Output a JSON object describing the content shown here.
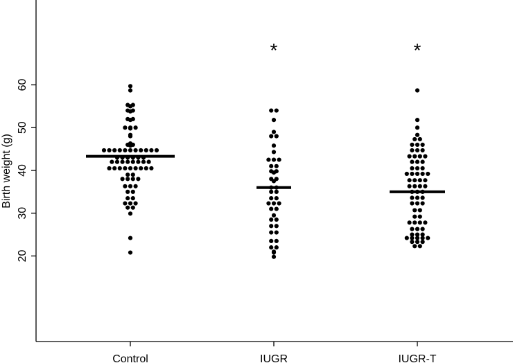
{
  "chart_data": {
    "type": "scatter",
    "subtype": "dot-strip (beeswarm) with group means",
    "ylabel": "Birth weight (g)",
    "xlabel": "",
    "ylim": [
      0,
      80
    ],
    "yticks": [
      20,
      30,
      40,
      50,
      60
    ],
    "grid": false,
    "legend": "none",
    "categories": [
      "Control",
      "IUGR",
      "IUGR-T"
    ],
    "means": [
      43.3,
      36.0,
      35.0
    ],
    "significance": [
      "",
      "*",
      "*"
    ],
    "series": [
      {
        "category": "Control",
        "values": [
          59.7,
          58.7,
          55.3,
          55.3,
          55.0,
          54.0,
          54.0,
          53.8,
          52.0,
          52.0,
          51.8,
          50.0,
          50.0,
          50.0,
          49.8,
          48.3,
          48.0,
          46.3,
          46.0,
          46.0,
          45.8,
          44.7,
          44.7,
          44.7,
          44.7,
          44.7,
          44.7,
          44.7,
          44.7,
          44.7,
          44.7,
          44.7,
          43.0,
          43.0,
          43.0,
          43.0,
          43.0,
          43.0,
          42.0,
          42.0,
          42.0,
          42.0,
          42.0,
          42.0,
          42.0,
          42.0,
          40.5,
          40.5,
          40.5,
          40.5,
          40.5,
          40.5,
          40.5,
          40.5,
          40.5,
          39.0,
          39.0,
          38.0,
          38.0,
          38.0,
          38.0,
          36.3,
          36.3,
          36.3,
          35.0,
          35.0,
          33.5,
          33.5,
          32.3,
          32.3,
          32.3,
          31.3,
          31.3,
          29.9,
          24.2,
          20.8
        ]
      },
      {
        "category": "IUGR",
        "values": [
          54.0,
          54.0,
          51.8,
          49.0,
          48.0,
          48.0,
          45.8,
          44.3,
          42.5,
          42.5,
          42.5,
          41.0,
          41.0,
          39.8,
          39.8,
          39.5,
          38.0,
          38.0,
          37.5,
          36.0,
          36.0,
          35.0,
          35.0,
          33.5,
          33.5,
          32.3,
          32.3,
          32.3,
          31.0,
          31.0,
          29.5,
          28.5,
          28.5,
          27.0,
          27.0,
          25.5,
          25.5,
          23.5,
          23.5,
          22.0,
          22.0,
          21.0,
          20.8,
          19.8
        ]
      },
      {
        "category": "IUGR-T",
        "values": [
          58.7,
          51.8,
          50.0,
          48.3,
          47.3,
          47.3,
          46.0,
          46.0,
          46.0,
          44.7,
          44.7,
          44.7,
          43.3,
          43.3,
          43.3,
          43.3,
          42.0,
          42.0,
          42.0,
          40.5,
          40.5,
          40.5,
          39.2,
          39.2,
          39.2,
          39.2,
          39.2,
          37.7,
          37.7,
          37.7,
          37.7,
          36.3,
          36.3,
          36.3,
          36.3,
          35.0,
          35.0,
          35.0,
          33.6,
          33.6,
          33.6,
          32.3,
          32.3,
          32.3,
          30.7,
          30.7,
          29.2,
          29.2,
          27.8,
          27.8,
          27.8,
          27.8,
          26.3,
          26.3,
          26.3,
          25.0,
          25.0,
          25.0,
          24.2,
          24.2,
          24.2,
          24.2,
          24.2,
          23.3,
          23.3,
          23.3,
          22.3,
          22.3
        ]
      }
    ]
  }
}
